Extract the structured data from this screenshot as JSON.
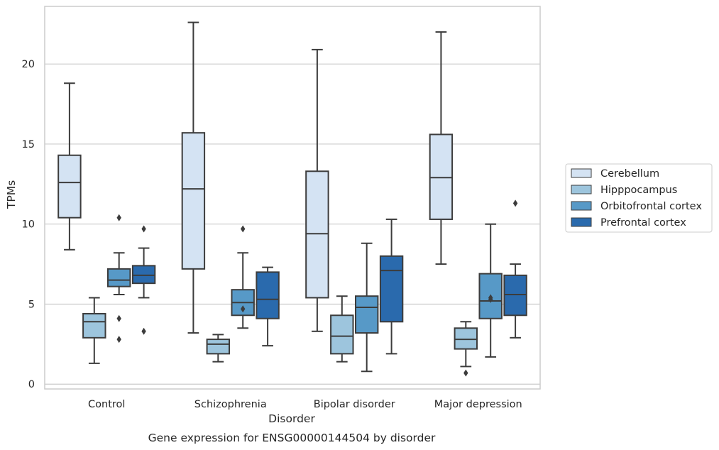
{
  "chart_data": {
    "type": "box",
    "caption": "Gene expression for ENSG00000144504 by disorder",
    "xlabel": "Disorder",
    "ylabel": "TPMs",
    "ylim": [
      -0.3,
      23.6
    ],
    "yticks": [
      0,
      5,
      10,
      15,
      20
    ],
    "grid": true,
    "legend_position": "right",
    "categories": [
      "Control",
      "Schizophrenia",
      "Bipolar disorder",
      "Major depression"
    ],
    "series": [
      {
        "name": "Cerebellum",
        "color": "#d4e3f3",
        "boxes": [
          {
            "whislo": 8.4,
            "q1": 10.4,
            "med": 12.6,
            "q3": 14.3,
            "whishi": 18.8,
            "fliers": []
          },
          {
            "whislo": 3.2,
            "q1": 7.2,
            "med": 12.2,
            "q3": 15.7,
            "whishi": 22.6,
            "fliers": []
          },
          {
            "whislo": 3.3,
            "q1": 5.4,
            "med": 9.4,
            "q3": 13.3,
            "whishi": 20.9,
            "fliers": []
          },
          {
            "whislo": 7.5,
            "q1": 10.3,
            "med": 12.9,
            "q3": 15.6,
            "whishi": 22.0,
            "fliers": []
          }
        ]
      },
      {
        "name": "Hipppocampus",
        "color": "#9dc5dd",
        "boxes": [
          {
            "whislo": 1.3,
            "q1": 2.9,
            "med": 3.9,
            "q3": 4.4,
            "whishi": 5.4,
            "fliers": []
          },
          {
            "whislo": 1.4,
            "q1": 1.9,
            "med": 2.5,
            "q3": 2.8,
            "whishi": 3.1,
            "fliers": []
          },
          {
            "whislo": 1.4,
            "q1": 1.9,
            "med": 3.0,
            "q3": 4.3,
            "whishi": 5.5,
            "fliers": []
          },
          {
            "whislo": 1.1,
            "q1": 2.2,
            "med": 2.8,
            "q3": 3.5,
            "whishi": 3.9,
            "fliers": [
              0.7
            ]
          }
        ]
      },
      {
        "name": "Orbitofrontal cortex",
        "color": "#5799c7",
        "boxes": [
          {
            "whislo": 5.6,
            "q1": 6.1,
            "med": 6.5,
            "q3": 7.2,
            "whishi": 8.2,
            "fliers": [
              10.4,
              4.1,
              2.8
            ]
          },
          {
            "whislo": 3.5,
            "q1": 4.3,
            "med": 5.1,
            "q3": 5.9,
            "whishi": 8.2,
            "fliers": [
              9.7,
              4.7
            ]
          },
          {
            "whislo": 0.8,
            "q1": 3.2,
            "med": 4.8,
            "q3": 5.5,
            "whishi": 8.8,
            "fliers": []
          },
          {
            "whislo": 1.7,
            "q1": 4.1,
            "med": 5.2,
            "q3": 6.9,
            "whishi": 10.0,
            "fliers": [
              5.3,
              5.4
            ]
          }
        ]
      },
      {
        "name": "Prefrontal cortex",
        "color": "#2a6aad",
        "boxes": [
          {
            "whislo": 5.4,
            "q1": 6.3,
            "med": 6.8,
            "q3": 7.4,
            "whishi": 8.5,
            "fliers": [
              9.7,
              3.3
            ]
          },
          {
            "whislo": 2.4,
            "q1": 4.1,
            "med": 5.3,
            "q3": 7.0,
            "whishi": 7.3,
            "fliers": []
          },
          {
            "whislo": 1.9,
            "q1": 3.9,
            "med": 7.1,
            "q3": 8.0,
            "whishi": 10.3,
            "fliers": []
          },
          {
            "whislo": 2.9,
            "q1": 4.3,
            "med": 5.6,
            "q3": 6.8,
            "whishi": 7.5,
            "fliers": [
              11.3
            ]
          }
        ]
      }
    ]
  }
}
